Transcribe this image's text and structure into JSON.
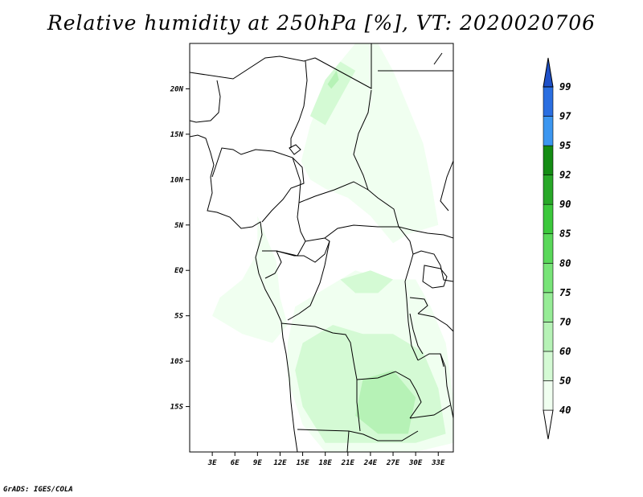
{
  "title": "Relative humidity at 250hPa [%], VT: 2020020706",
  "credit": "GrADS: IGES/COLA",
  "map": {
    "lat_labels": [
      {
        "text": "20N",
        "lat": 20
      },
      {
        "text": "15N",
        "lat": 15
      },
      {
        "text": "10N",
        "lat": 10
      },
      {
        "text": "5N",
        "lat": 5
      },
      {
        "text": "EQ",
        "lat": 0
      },
      {
        "text": "5S",
        "lat": -5
      },
      {
        "text": "10S",
        "lat": -10
      },
      {
        "text": "15S",
        "lat": -15
      }
    ],
    "lon_labels": [
      {
        "text": "3E",
        "lon": 3
      },
      {
        "text": "6E",
        "lon": 6
      },
      {
        "text": "9E",
        "lon": 9
      },
      {
        "text": "12E",
        "lon": 12
      },
      {
        "text": "15E",
        "lon": 15
      },
      {
        "text": "18E",
        "lon": 18
      },
      {
        "text": "21E",
        "lon": 21
      },
      {
        "text": "24E",
        "lon": 24
      },
      {
        "text": "27E",
        "lon": 27
      },
      {
        "text": "30E",
        "lon": 30
      },
      {
        "text": "33E",
        "lon": 33
      }
    ],
    "lon_range": [
      0,
      35
    ],
    "lat_range": [
      -20,
      25
    ],
    "humid_areas": [
      {
        "level": 40,
        "pts": [
          [
            14.8,
            12
          ],
          [
            16,
            16
          ],
          [
            18,
            20
          ],
          [
            20,
            23
          ],
          [
            22,
            25
          ],
          [
            25,
            25
          ],
          [
            27,
            22
          ],
          [
            29,
            18
          ],
          [
            31,
            14
          ],
          [
            32,
            10
          ],
          [
            33,
            5
          ],
          [
            29,
            4
          ],
          [
            27,
            3
          ],
          [
            24,
            6
          ],
          [
            21,
            8
          ],
          [
            18,
            9
          ],
          [
            16,
            10
          ]
        ]
      },
      {
        "level": 40,
        "pts": [
          [
            9,
            6
          ],
          [
            10,
            4
          ],
          [
            11.5,
            1
          ],
          [
            12,
            -3
          ],
          [
            13,
            -6
          ],
          [
            11,
            -8
          ],
          [
            7,
            -7
          ],
          [
            3,
            -5
          ],
          [
            4,
            -3
          ],
          [
            7,
            -1
          ],
          [
            9,
            2
          ]
        ]
      },
      {
        "level": 40,
        "pts": [
          [
            14,
            -4
          ],
          [
            18,
            -2
          ],
          [
            22,
            0
          ],
          [
            26,
            -1
          ],
          [
            30,
            -1
          ],
          [
            32,
            -4
          ],
          [
            34,
            -8
          ],
          [
            35,
            -14
          ],
          [
            35,
            -19
          ],
          [
            30,
            -20
          ],
          [
            24,
            -20
          ],
          [
            18,
            -20
          ],
          [
            15,
            -17
          ],
          [
            13,
            -12
          ],
          [
            13,
            -8
          ]
        ]
      },
      {
        "level": 50,
        "pts": [
          [
            16,
            17
          ],
          [
            18,
            21
          ],
          [
            20,
            23
          ],
          [
            22,
            22
          ],
          [
            20,
            19
          ],
          [
            18,
            16
          ]
        ]
      },
      {
        "level": 50,
        "pts": [
          [
            15,
            -8
          ],
          [
            19,
            -6
          ],
          [
            23,
            -7
          ],
          [
            27,
            -7
          ],
          [
            31,
            -9
          ],
          [
            33,
            -13
          ],
          [
            34,
            -18
          ],
          [
            30,
            -19
          ],
          [
            24,
            -19
          ],
          [
            18,
            -19
          ],
          [
            15,
            -15
          ],
          [
            14,
            -11
          ]
        ]
      },
      {
        "level": 50,
        "pts": [
          [
            20,
            -1
          ],
          [
            24,
            0
          ],
          [
            27,
            -1
          ],
          [
            25,
            -2.5
          ],
          [
            22,
            -2.5
          ]
        ]
      },
      {
        "level": 60,
        "pts": [
          [
            23,
            -12
          ],
          [
            27,
            -11
          ],
          [
            30,
            -14
          ],
          [
            29,
            -18
          ],
          [
            25,
            -18
          ],
          [
            22,
            -16
          ]
        ]
      },
      {
        "level": 60,
        "pts": [
          [
            18.3,
            20.5
          ],
          [
            19.5,
            22
          ],
          [
            19.8,
            21
          ],
          [
            18.8,
            20
          ]
        ]
      }
    ]
  },
  "colorbar": {
    "colors": [
      {
        "level_low": "40",
        "color": "#f0fff0"
      },
      {
        "level_low": "50",
        "color": "#d4fad4"
      },
      {
        "level_low": "60",
        "color": "#b6f2b6"
      },
      {
        "level_low": "70",
        "color": "#96ec96"
      },
      {
        "level_low": "75",
        "color": "#78e478"
      },
      {
        "level_low": "80",
        "color": "#5ad85a"
      },
      {
        "level_low": "85",
        "color": "#3cc83c"
      },
      {
        "level_low": "90",
        "color": "#28a828"
      },
      {
        "level_low": "92",
        "color": "#148c14"
      },
      {
        "level_low": "95",
        "color": "#3c96f0"
      },
      {
        "level_low": "97",
        "color": "#2a6ee0"
      },
      {
        "level_low": "99",
        "color": "#1e50c8"
      }
    ],
    "labels": [
      "40",
      "50",
      "60",
      "70",
      "75",
      "80",
      "85",
      "90",
      "92",
      "95",
      "97",
      "99"
    ],
    "below_color": "#ffffff"
  }
}
